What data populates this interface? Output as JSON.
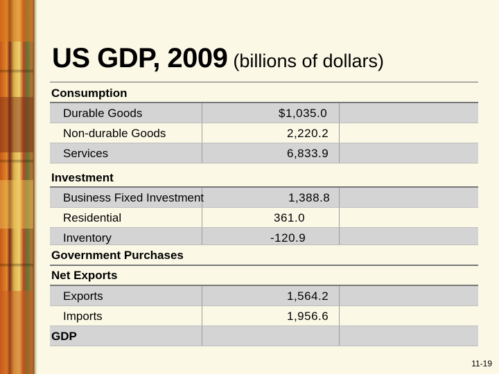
{
  "title": {
    "main": "US GDP, 2009",
    "sub": "(billions of dollars)"
  },
  "rows": [
    {
      "label": "Consumption",
      "value": ""
    },
    {
      "label": "Durable Goods",
      "value": "$1,035.0"
    },
    {
      "label": "Non-durable Goods",
      "value": "2,220.2"
    },
    {
      "label": "Services",
      "value": "6,833.9"
    },
    {
      "label": "Investment",
      "value": ""
    },
    {
      "label": "Business Fixed Investment",
      "value": "1,388.8"
    },
    {
      "label": "Residential",
      "value": "361.0"
    },
    {
      "label": "Inventory",
      "value": "-120.9"
    },
    {
      "label": "Government Purchases",
      "value": ""
    },
    {
      "label": "Net Exports",
      "value": ""
    },
    {
      "label": "Exports",
      "value": "1,564.2"
    },
    {
      "label": "Imports",
      "value": "1,956.6"
    },
    {
      "label": "GDP",
      "value": ""
    }
  ],
  "page_number": "11-19"
}
